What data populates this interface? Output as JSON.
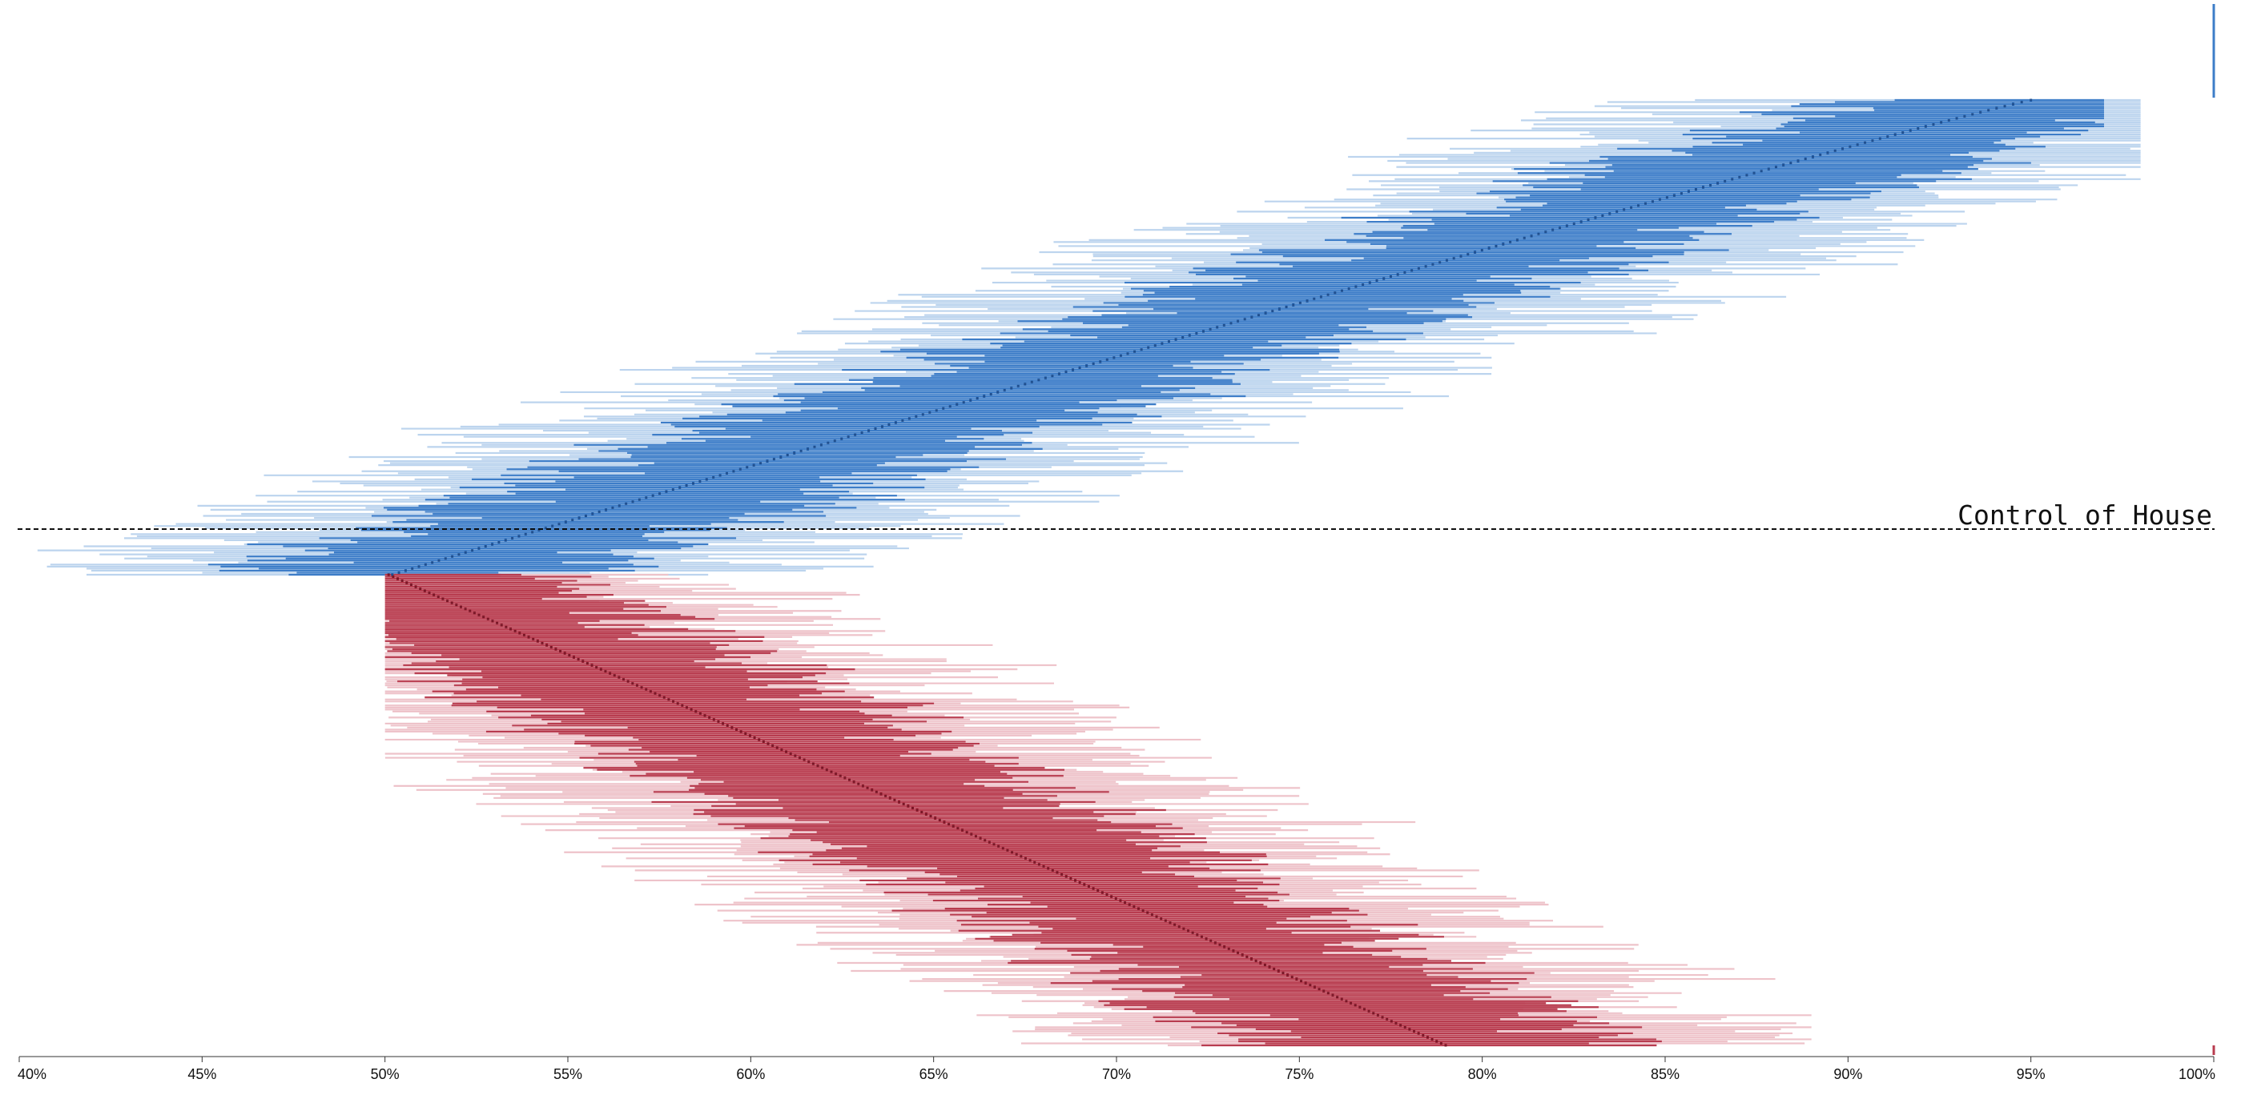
{
  "chart_data": {
    "type": "range-strip",
    "title": "",
    "xlabel": "",
    "ylabel": "",
    "xlim": [
      40,
      100
    ],
    "x_ticks": [
      40,
      45,
      50,
      55,
      60,
      65,
      70,
      75,
      80,
      85,
      90,
      95,
      100
    ],
    "x_tick_labels": [
      "40%",
      "45%",
      "50%",
      "55%",
      "60%",
      "65%",
      "70%",
      "75%",
      "80%",
      "85%",
      "90%",
      "95%",
      "100%"
    ],
    "threshold_label": "Control of House",
    "series": [
      {
        "party": "dem",
        "color": "#3d7dc8",
        "light_color": "#bcd4ee",
        "dot_color": "#1f4f8f",
        "median_from": 95.0,
        "median_to": 50.2,
        "row_count": 235,
        "inner_half_width": 5.5,
        "outer_half_width": 9.5
      },
      {
        "party": "rep",
        "color": "#b83c4f",
        "light_color": "#eec3ca",
        "dot_color": "#7a1626",
        "median_from": 50.1,
        "median_to": 79.0,
        "row_count": 235,
        "inner_half_width": 5.5,
        "outer_half_width": 9.5
      }
    ],
    "extreme_markers": [
      {
        "party": "dem",
        "value": 100
      },
      {
        "party": "rep",
        "value": 100
      }
    ],
    "grid": false,
    "legend": "none"
  }
}
